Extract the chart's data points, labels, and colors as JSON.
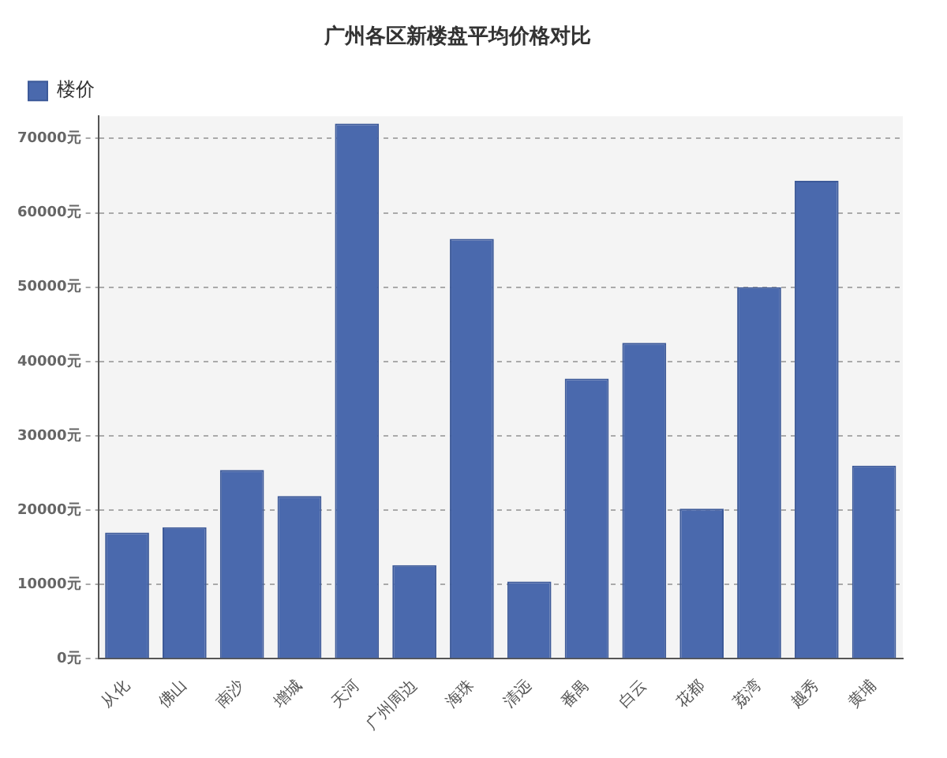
{
  "chart_data": {
    "type": "bar",
    "title": "广州各区新楼盘平均价格对比",
    "categories": [
      "从化",
      "佛山",
      "南沙",
      "增城",
      "天河",
      "广州周边",
      "海珠",
      "清远",
      "番禺",
      "白云",
      "花都",
      "荔湾",
      "越秀",
      "黄埔"
    ],
    "series": [
      {
        "name": "楼价",
        "color": "#4a69ad",
        "values": [
          17000,
          17700,
          25400,
          21900,
          72000,
          12600,
          56500,
          10400,
          37700,
          42500,
          20200,
          50000,
          64300,
          26000
        ]
      }
    ],
    "ylim": [
      0,
      73000
    ],
    "yticks": [
      {
        "value": 0,
        "label": "0元"
      },
      {
        "value": 10000,
        "label": "10000元"
      },
      {
        "value": 20000,
        "label": "20000元"
      },
      {
        "value": 30000,
        "label": "30000元"
      },
      {
        "value": 40000,
        "label": "40000元"
      },
      {
        "value": 50000,
        "label": "50000元"
      },
      {
        "value": 60000,
        "label": "60000元"
      },
      {
        "value": 70000,
        "label": "70000元"
      }
    ],
    "grid": "y",
    "legend": "top left"
  }
}
